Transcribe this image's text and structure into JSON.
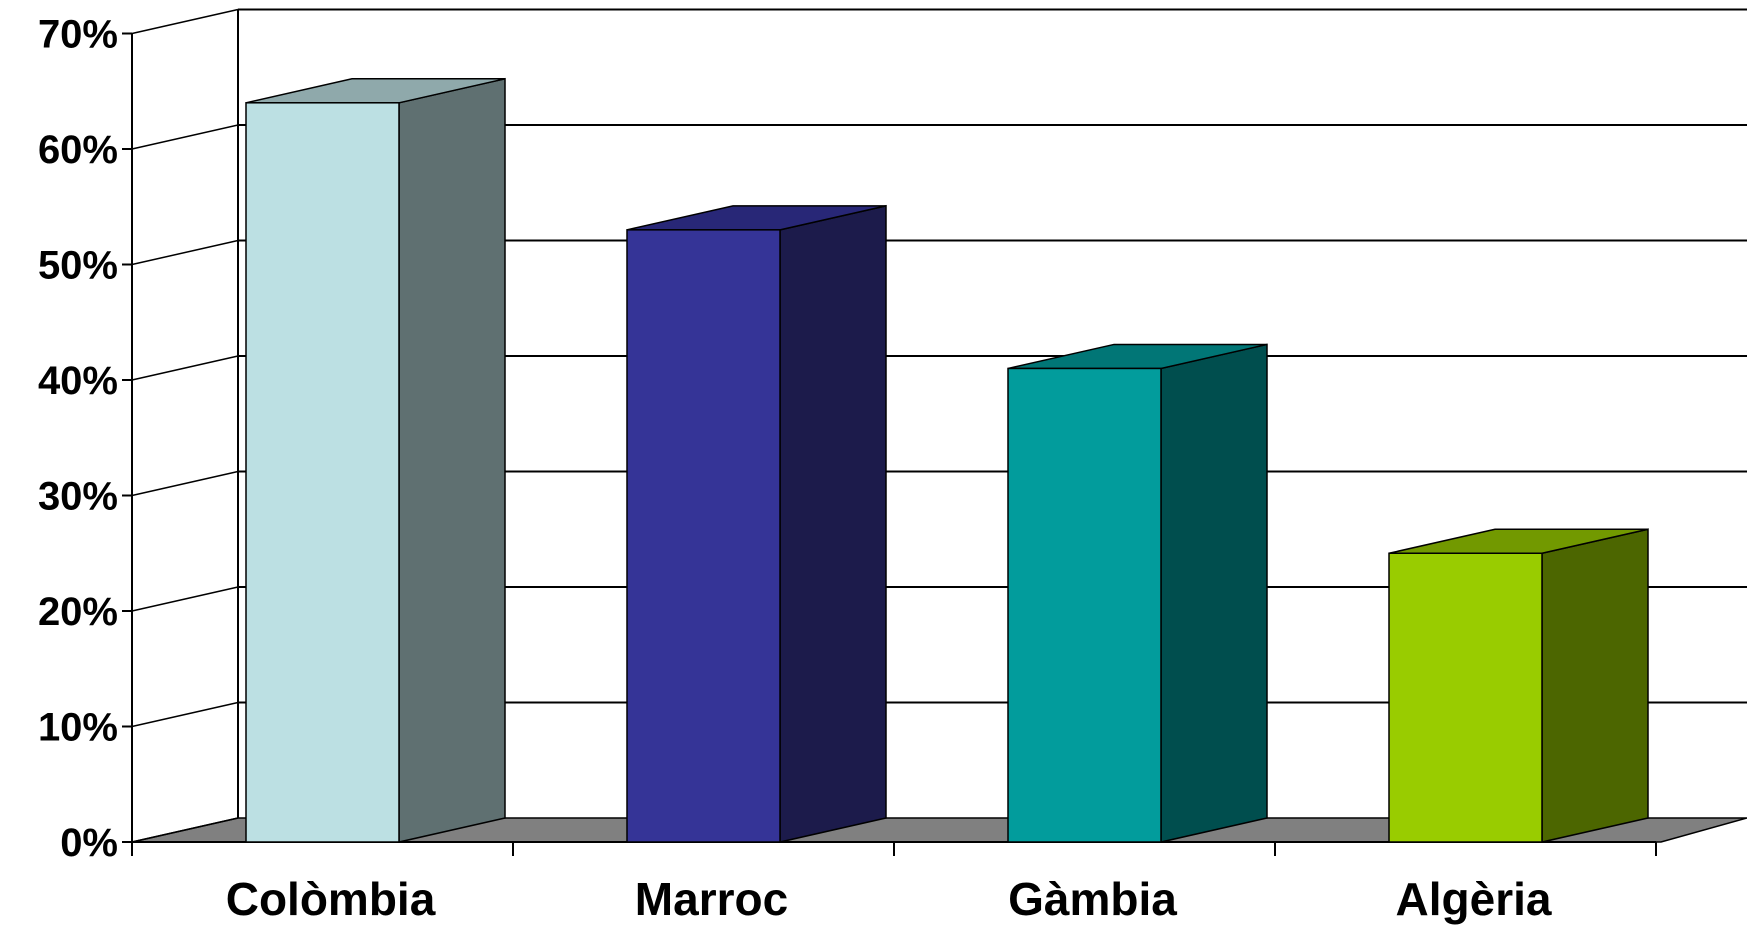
{
  "chart_data": {
    "type": "bar",
    "style": "3d-column",
    "categories": [
      "Colòmbia",
      "Marroc",
      "Gàmbia",
      "Algèria"
    ],
    "values": [
      64,
      53,
      41,
      25
    ],
    "ylim": [
      0,
      70
    ],
    "yticks": [
      "0%",
      "10%",
      "20%",
      "30%",
      "40%",
      "50%",
      "60%",
      "70%"
    ],
    "grid": true,
    "legend": "none",
    "colors": [
      {
        "front": "#bce0e3",
        "side": "#5f7071",
        "top": "#8fa9ab"
      },
      {
        "front": "#353497",
        "side": "#1c1b4b",
        "top": "#282777"
      },
      {
        "front": "#029c9c",
        "side": "#004e4e",
        "top": "#017676"
      },
      {
        "front": "#99cc00",
        "side": "#4c6600",
        "top": "#729900"
      }
    ],
    "floor_color": "#808080"
  }
}
